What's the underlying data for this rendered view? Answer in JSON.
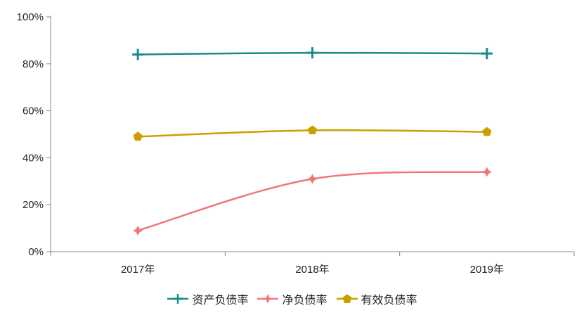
{
  "chart_data": {
    "type": "line",
    "categories": [
      "2017年",
      "2018年",
      "2019年"
    ],
    "series": [
      {
        "name": "资产负债率",
        "values": [
          84,
          84.7,
          84.4
        ],
        "color": "#1a8a8a",
        "marker": "plus"
      },
      {
        "name": "净负债率",
        "values": [
          9,
          31,
          34
        ],
        "color": "#f0787a",
        "marker": "star4"
      },
      {
        "name": "有效负债率",
        "values": [
          49,
          51.7,
          51
        ],
        "color": "#c9a000",
        "marker": "pentagon"
      }
    ],
    "ylim": [
      0,
      100
    ],
    "yticks": [
      0,
      20,
      40,
      60,
      80,
      100
    ],
    "ytick_labels": [
      "0%",
      "20%",
      "40%",
      "60%",
      "80%",
      "100%"
    ],
    "legend_position": "bottom",
    "grid": false,
    "title": "",
    "xlabel": "",
    "ylabel": ""
  }
}
